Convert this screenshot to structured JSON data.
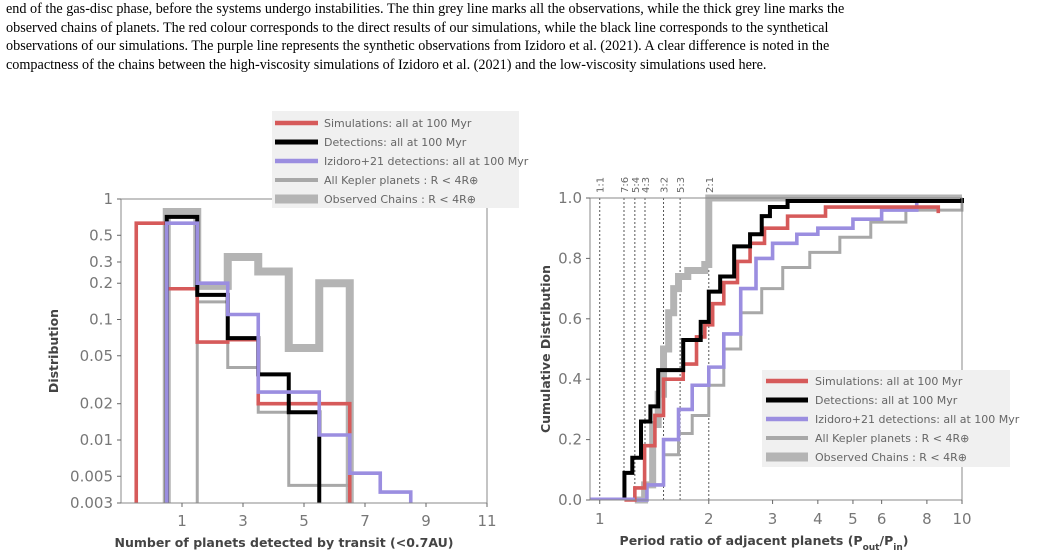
{
  "caption": {
    "lines": [
      "end of the gas-disc phase, before the systems undergo instabilities. The thin grey line marks all the observations, while the thick grey line marks the",
      "observed chains of planets. The red colour corresponds to the direct results of our simulations, while the black line corresponds to the synthetical",
      "observations of our simulations. The purple line represents the synthetic observations from Izidoro et al. (2021). A clear difference is noted in the",
      "compactness of the chains between the high-viscosity simulations of Izidoro et al. (2021) and the low-viscosity simulations used here."
    ]
  },
  "colors": {
    "simulations": "#d65a5a",
    "detections": "#000000",
    "izidoro": "#9b8ee0",
    "kepler": "#a8a8a8",
    "chains": "#b4b4b4",
    "legend_bg": "#f0f0f0",
    "grid": "#555555"
  },
  "chart_data": [
    {
      "type": "histogram-step",
      "xlabel": "Number of planets detected by transit (<0.7AU)",
      "ylabel": "Distribution",
      "yscale": "log",
      "ylim": [
        0.003,
        1
      ],
      "xlim": [
        -1,
        11
      ],
      "xticks": [
        1,
        3,
        5,
        7,
        9,
        11
      ],
      "xtick_labels": [
        "1",
        "3",
        "5",
        "7",
        "9",
        "11"
      ],
      "yticks": [
        1,
        0.5,
        0.3,
        0.2,
        0.1,
        0.05,
        0.02,
        0.01,
        0.005,
        0.003
      ],
      "ytick_labels": [
        "1",
        "0.5",
        "0.3",
        "0.2",
        "0.1",
        "0.05",
        "0.02",
        "0.01",
        "0.005",
        "0.003"
      ],
      "legend_position": "upper-center",
      "series": [
        {
          "name": "Observed Chains : R < 4R⊕",
          "key": "chains",
          "edges": [
            0.5,
            1.5,
            2.5,
            3.5,
            4.5,
            5.5,
            6.5
          ],
          "values": [
            0.78,
            0.19,
            0.33,
            0.25,
            0.058,
            0.2
          ]
        },
        {
          "name": "All Kepler planets : R < 4R⊕",
          "key": "kepler",
          "edges": [
            1.5,
            2.5,
            3.5,
            4.5,
            5.5,
            6.5
          ],
          "values": [
            0.14,
            0.04,
            0.017,
            0.0042,
            0.0042
          ]
        },
        {
          "name": "Simulations: all at 100 Myr",
          "key": "simulations",
          "edges": [
            -0.5,
            0.5,
            1.5,
            2.5,
            3.5,
            4.5,
            5.5,
            6.5
          ],
          "values": [
            0.63,
            0.18,
            0.065,
            0.068,
            0.02,
            0.02,
            0.02
          ]
        },
        {
          "name": "Detections: all at 100 Myr",
          "key": "detections",
          "edges": [
            0.5,
            1.5,
            2.5,
            3.5,
            4.5,
            5.5
          ],
          "values": [
            0.71,
            0.16,
            0.07,
            0.035,
            0.017
          ]
        },
        {
          "name": "Izidoro+21 detections: all at 100 Myr",
          "key": "izidoro",
          "edges": [
            0.5,
            1.5,
            2.5,
            3.5,
            4.5,
            5.5,
            6.5,
            7.5,
            8.5
          ],
          "values": [
            0.63,
            0.2,
            0.11,
            0.025,
            0.025,
            0.011,
            0.0053,
            0.0037
          ]
        }
      ]
    },
    {
      "type": "cdf-step",
      "xlabel": "Period ratio of adjacent planets (P",
      "xlabel_sub1": "out",
      "xlabel_mid": "/P",
      "xlabel_sub2": "in",
      "xlabel_end": ")",
      "ylabel": "Cumulative Distribution",
      "xscale": "log",
      "xlim": [
        0.94,
        10
      ],
      "ylim": [
        0,
        1
      ],
      "xticks": [
        1,
        2,
        3,
        4,
        5,
        6,
        8,
        10
      ],
      "xtick_labels": [
        "1",
        "2",
        "3",
        "4",
        "5",
        "6",
        "8",
        "10"
      ],
      "yticks": [
        0,
        0.2,
        0.4,
        0.6,
        0.8,
        1.0
      ],
      "ytick_labels": [
        "0.0",
        "0.2",
        "0.4",
        "0.6",
        "0.8",
        "1.0"
      ],
      "resonances": [
        {
          "label": "1:1",
          "value": 1.0
        },
        {
          "label": "7:6",
          "value": 1.1667
        },
        {
          "label": "5:4",
          "value": 1.25
        },
        {
          "label": "4:3",
          "value": 1.3333
        },
        {
          "label": "3:2",
          "value": 1.5
        },
        {
          "label": "5:3",
          "value": 1.6667
        },
        {
          "label": "2:1",
          "value": 2.0
        }
      ],
      "legend_position": "lower-right",
      "series": [
        {
          "name": "Observed Chains : R < 4R⊕",
          "key": "chains",
          "x": [
            1.25,
            1.33,
            1.4,
            1.45,
            1.5,
            1.55,
            1.6,
            1.65,
            1.75,
            1.95,
            2.0,
            10
          ],
          "y": [
            0.0,
            0.05,
            0.25,
            0.35,
            0.5,
            0.62,
            0.7,
            0.74,
            0.76,
            0.78,
            1.0,
            1.0
          ]
        },
        {
          "name": "All Kepler planets : R < 4R⊕",
          "key": "kepler",
          "x": [
            1.2,
            1.35,
            1.5,
            1.65,
            1.8,
            2.0,
            2.2,
            2.45,
            2.8,
            3.2,
            3.8,
            4.6,
            5.6,
            7.0,
            10
          ],
          "y": [
            0.0,
            0.05,
            0.15,
            0.22,
            0.28,
            0.38,
            0.5,
            0.62,
            0.7,
            0.77,
            0.82,
            0.87,
            0.92,
            0.96,
            1.0
          ]
        },
        {
          "name": "Simulations: all at 100 Myr",
          "key": "simulations",
          "x": [
            1.17,
            1.25,
            1.33,
            1.42,
            1.5,
            1.7,
            1.85,
            1.95,
            2.05,
            2.2,
            2.4,
            2.6,
            2.85,
            3.3,
            4.2,
            5.5,
            7.0,
            8.6
          ],
          "y": [
            0.0,
            0.04,
            0.18,
            0.28,
            0.4,
            0.45,
            0.54,
            0.58,
            0.65,
            0.72,
            0.79,
            0.85,
            0.9,
            0.94,
            0.97,
            0.97,
            0.97,
            0.95
          ]
        },
        {
          "name": "Detections: all at 100 Myr",
          "key": "detections",
          "x": [
            1.17,
            1.23,
            1.3,
            1.38,
            1.45,
            1.5,
            1.7,
            1.9,
            2.0,
            2.15,
            2.35,
            2.6,
            2.8,
            2.95,
            3.3,
            10
          ],
          "y": [
            0.09,
            0.14,
            0.26,
            0.31,
            0.43,
            0.43,
            0.53,
            0.59,
            0.69,
            0.74,
            0.84,
            0.88,
            0.94,
            0.97,
            0.99,
            1.0
          ]
        },
        {
          "name": "Izidoro+21 detections: all at 100 Myr",
          "key": "izidoro",
          "x": [
            1.25,
            1.35,
            1.5,
            1.65,
            1.8,
            2.0,
            2.2,
            2.45,
            2.7,
            3.0,
            3.5,
            4.0,
            5.0,
            6.0,
            7.5,
            10
          ],
          "y": [
            0.0,
            0.05,
            0.2,
            0.3,
            0.38,
            0.44,
            0.55,
            0.7,
            0.8,
            0.85,
            0.88,
            0.9,
            0.93,
            0.96,
            0.99,
            1.0
          ]
        }
      ]
    }
  ]
}
